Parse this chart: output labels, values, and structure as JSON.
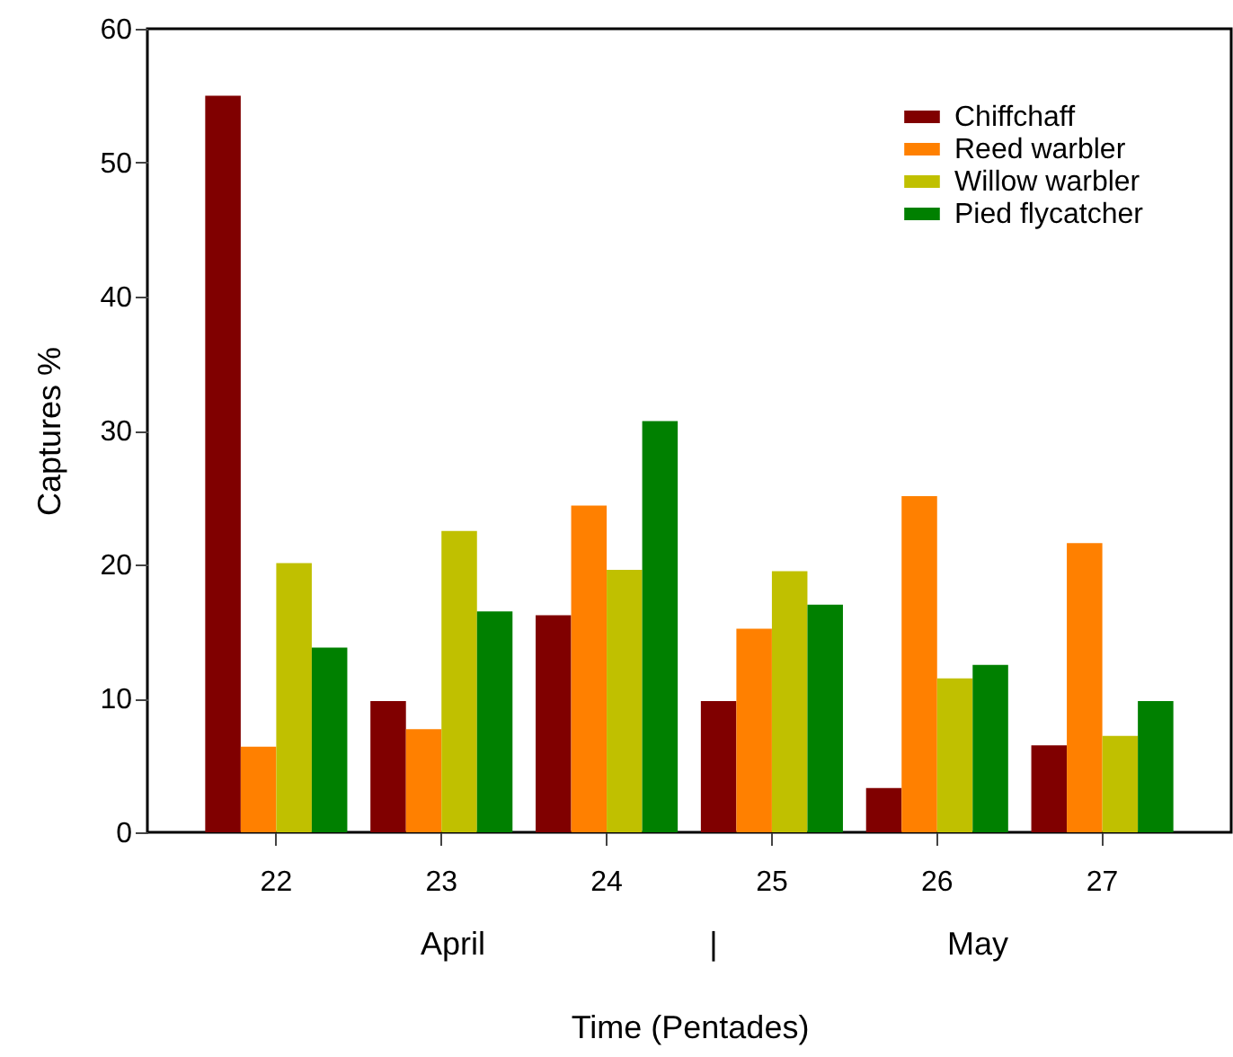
{
  "chart_data": {
    "type": "bar",
    "xlabel": "Time (Pentades)",
    "ylabel": "Captures %",
    "categories": [
      "22",
      "23",
      "24",
      "25",
      "26",
      "27"
    ],
    "series": [
      {
        "name": "Chiffchaff",
        "color": "#800000",
        "values": [
          55,
          9.8,
          16.2,
          9.8,
          3.3,
          6.5
        ]
      },
      {
        "name": "Reed warbler",
        "color": "#ff8000",
        "values": [
          6.4,
          7.7,
          24.4,
          15.2,
          25.1,
          21.6
        ]
      },
      {
        "name": "Willow warbler",
        "color": "#c0c000",
        "values": [
          20.1,
          22.5,
          19.6,
          19.5,
          11.5,
          7.2
        ]
      },
      {
        "name": "Pied flycatcher",
        "color": "#008000",
        "values": [
          13.8,
          16.5,
          30.7,
          17.0,
          12.5,
          9.8
        ]
      }
    ],
    "ylim": [
      0,
      60
    ],
    "yticks": [
      0,
      10,
      20,
      30,
      40,
      50,
      60
    ],
    "grid": false,
    "legend": "top right",
    "annotations": [
      "April",
      "|",
      "May"
    ]
  }
}
